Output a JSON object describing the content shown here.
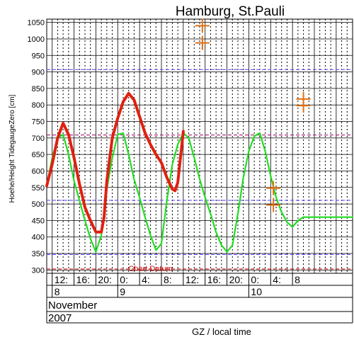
{
  "chart_data": {
    "type": "line",
    "title": "Hamburg, St.Pauli",
    "ylabel": "Hoehe/Height TidegaugeZero [cm]",
    "xlabel": "GZ / local time",
    "ylim": [
      290,
      1060
    ],
    "xlim": [
      -1.0,
      55.0
    ],
    "y_ticks": [
      300,
      350,
      400,
      450,
      500,
      550,
      600,
      650,
      700,
      750,
      800,
      850,
      900,
      950,
      1000,
      1050
    ],
    "y_tick_labels": [
      "300",
      "350",
      "400",
      "450",
      "500",
      "550",
      "600",
      "650",
      "700",
      "750",
      "800",
      "850",
      "900",
      "950",
      "1000",
      "1050"
    ],
    "x_ticks": [
      0,
      4,
      8,
      12,
      16,
      20,
      24,
      28,
      32,
      36,
      40,
      44,
      48,
      52
    ],
    "x_tick_labels": [
      "12:",
      "16:",
      "20:",
      "0:",
      "4:",
      "8:",
      "12:",
      "16:",
      "20:",
      "0:",
      "4:",
      "8"
    ],
    "x_tick_label_positions": [
      0,
      4,
      8,
      12,
      16,
      20,
      24,
      28,
      32,
      36,
      40,
      44
    ],
    "day_labels": [
      {
        "text": "8",
        "x": 0
      },
      {
        "text": "9",
        "x": 12
      },
      {
        "text": "10",
        "x": 36
      }
    ],
    "month": "November",
    "year": "2007",
    "grid": true,
    "series": [
      {
        "color": "#e02010",
        "x": [
          -1.0,
          0,
          1,
          2,
          3,
          4,
          5,
          6,
          7,
          8,
          9,
          9.5,
          10,
          11,
          12,
          13,
          14,
          15,
          16,
          17,
          18,
          19,
          20,
          21,
          22,
          22.5,
          23,
          24
        ],
        "y": [
          555,
          620,
          700,
          745,
          710,
          640,
          560,
          490,
          450,
          415,
          415,
          460,
          570,
          700,
          760,
          810,
          835,
          815,
          765,
          715,
          680,
          650,
          625,
          580,
          545,
          540,
          565,
          720
        ]
      },
      {
        "color": "#22dd22",
        "x": [
          -1.0,
          0,
          1,
          2,
          3,
          4,
          5,
          6,
          7,
          8,
          9,
          10,
          11,
          12,
          13,
          14,
          15,
          16,
          17,
          18,
          19,
          20,
          21,
          22,
          23,
          24,
          25,
          26,
          27,
          28,
          29,
          30,
          31,
          32,
          33,
          34,
          35,
          36,
          37,
          38,
          39,
          40,
          41,
          42,
          43,
          44,
          45,
          46,
          47,
          48,
          49,
          50,
          51,
          52,
          53,
          54,
          55
        ],
        "y": [
          555,
          640,
          700,
          710,
          650,
          570,
          510,
          450,
          395,
          355,
          405,
          545,
          640,
          710,
          715,
          650,
          575,
          520,
          460,
          405,
          360,
          380,
          510,
          620,
          680,
          715,
          700,
          640,
          575,
          520,
          470,
          415,
          375,
          355,
          375,
          470,
          580,
          660,
          705,
          715,
          660,
          585,
          520,
          475,
          445,
          430,
          450,
          460,
          460,
          460,
          460,
          460,
          460,
          460,
          460,
          460,
          460
        ]
      }
    ],
    "reference_lines": [
      {
        "y": 907,
        "color": "#6050ff"
      },
      {
        "y": 709,
        "color": "#b03080"
      },
      {
        "y": 511,
        "color": "#6050ff"
      },
      {
        "y": 347,
        "color": "#6050ff"
      },
      {
        "y": 303,
        "color": "#d01010",
        "label": "Chart Datum"
      }
    ],
    "markers": [
      {
        "x": 27.5,
        "y": 1040,
        "color": "#e07010"
      },
      {
        "x": 27.5,
        "y": 988,
        "color": "#e07010"
      },
      {
        "x": 40.5,
        "y": 548,
        "color": "#e07010"
      },
      {
        "x": 40.5,
        "y": 497,
        "color": "#e07010"
      },
      {
        "x": 46,
        "y": 818,
        "color": "#e07010"
      },
      {
        "x": 46,
        "y": 798,
        "color": "#e07010"
      }
    ]
  }
}
